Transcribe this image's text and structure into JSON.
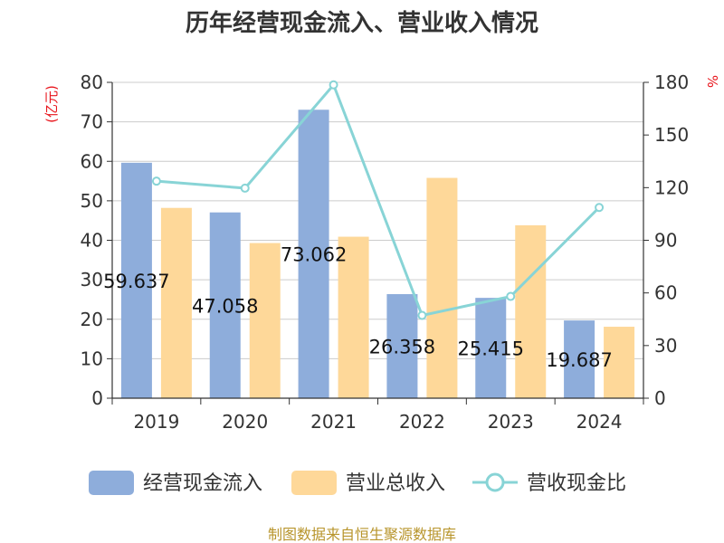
{
  "chart_data": {
    "type": "bar",
    "title": "历年经营现金流入、营业收入情况",
    "categories": [
      "2019",
      "2020",
      "2021",
      "2022",
      "2023",
      "2024"
    ],
    "series": [
      {
        "name": "经营现金流入",
        "type": "bar",
        "axis": "left",
        "color": "#8eaddb",
        "values": [
          59.637,
          47.058,
          73.062,
          26.358,
          25.415,
          19.687
        ],
        "labels": [
          "59.637",
          "47.058",
          "73.062",
          "26.358",
          "25.415",
          "19.687"
        ]
      },
      {
        "name": "营业总收入",
        "type": "bar",
        "axis": "left",
        "color": "#fed899",
        "values": [
          48.2,
          39.3,
          40.9,
          55.8,
          43.8,
          18.1
        ]
      },
      {
        "name": "营收现金比",
        "type": "line",
        "axis": "right",
        "color": "#88d4d6",
        "values": [
          123.7,
          119.7,
          178.6,
          47.2,
          58.0,
          108.7
        ]
      }
    ],
    "y_left": {
      "label": "(亿元)",
      "min": 0,
      "max": 80,
      "ticks": [
        0,
        10,
        20,
        30,
        40,
        50,
        60,
        70,
        80
      ]
    },
    "y_right": {
      "label": "%",
      "min": 0,
      "max": 180,
      "ticks": [
        0,
        30,
        60,
        90,
        120,
        150,
        180
      ]
    },
    "grid": true,
    "legend_position": "bottom"
  },
  "source": "制图数据来自恒生聚源数据库"
}
